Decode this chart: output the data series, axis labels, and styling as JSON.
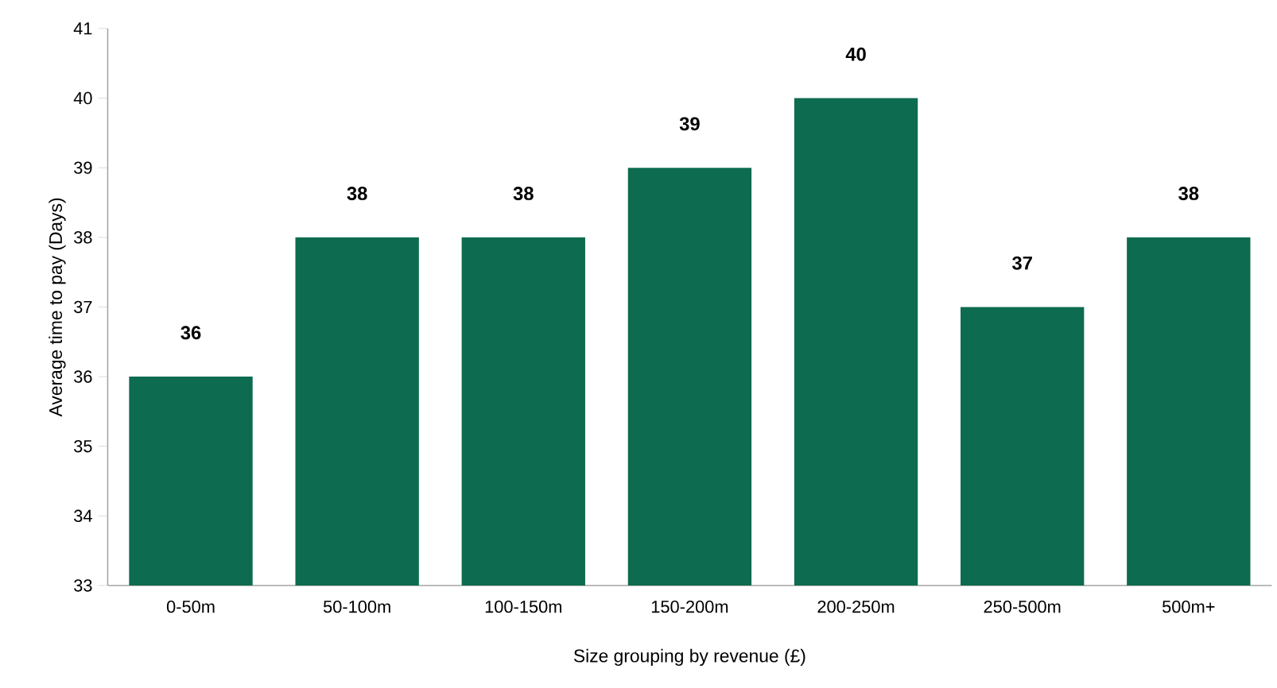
{
  "chart_data": {
    "type": "bar",
    "xlabel": "Size grouping by revenue (£)",
    "ylabel": "Average time to pay (Days)",
    "categories": [
      "0-50m",
      "50-100m",
      "100-150m",
      "150-200m",
      "200-250m",
      "250-500m",
      "500m+"
    ],
    "values": [
      36,
      38,
      38,
      39,
      40,
      37,
      38
    ],
    "color": "#0d6b4f",
    "ylim": [
      33,
      41
    ],
    "yticks": [
      33,
      34,
      35,
      36,
      37,
      38,
      39,
      40,
      41
    ],
    "data_labels": true
  }
}
